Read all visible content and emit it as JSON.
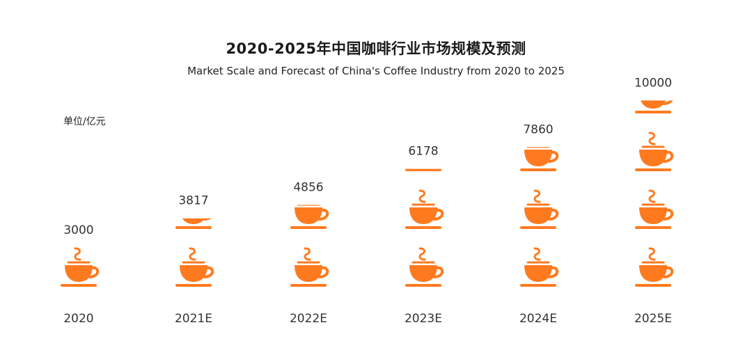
{
  "title": "2020-2025年中国咖啡行业市场规模及预测",
  "subtitle": "Market Scale and Forecast of China's Coffee Industry from 2020 to 2025",
  "unit_label": "单位/亿元",
  "icon": "coffee-cup-icon",
  "colors": {
    "accent": "#FF7A1F"
  },
  "chart_data": {
    "type": "bar",
    "style": "pictograph",
    "title": "2020-2025年中国咖啡行业市场规模及预测",
    "subtitle": "Market Scale and Forecast of China's Coffee Industry from 2020 to 2025",
    "ylabel": "单位/亿元",
    "categories": [
      "2020",
      "2021E",
      "2022E",
      "2023E",
      "2024E",
      "2025E"
    ],
    "values": [
      3000,
      3817,
      4856,
      6178,
      7860,
      10000
    ],
    "value_labels": [
      "3000",
      "3817",
      "4856",
      "6178",
      "7860",
      "10000"
    ],
    "ylim": [
      0,
      10000
    ],
    "units_per_icon": 3000,
    "grid": false,
    "legend": "none"
  }
}
